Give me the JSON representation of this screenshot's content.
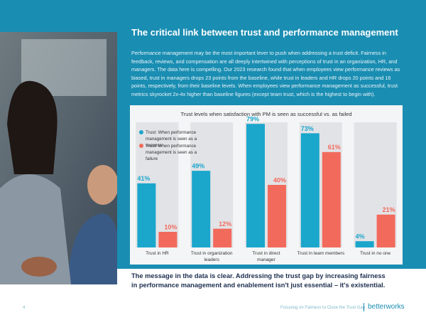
{
  "header": {
    "title": "The critical link between trust and performance management"
  },
  "body": {
    "paragraph": "Performance management may be the most important lever to push when addressing a trust deficit. Fairness in feedback, reviews, and compensation are all deeply intertwined with perceptions of trust in an organization, HR, and managers. The data here is compelling. Our 2023 research found that when employees view performance reviews as biased, trust in managers drops 23 points from the baseline, while trust in leaders and HR drops 20 points and 16 points, respectively, from their baseline levels. When employees view performance management as successful, trust metrics skyrocket 2x-4x higher than baseline figures (except team trust, which is the highest to begin with).",
    "conclusion": "The message in the data is clear. Addressing the trust gap by increasing fairness in performance management and enablement isn't just essential – it's existential."
  },
  "chart_data": {
    "type": "bar",
    "title": "Trust levels when satisfaction with PM is seen as successful vs. as failed",
    "categories": [
      "Trust in HR",
      "Trust in organization leaders",
      "Trust in direct manager",
      "Trust in team members",
      "Trust in no one"
    ],
    "series": [
      {
        "name": "Trust: When performance management is seen as a success",
        "color": "#1ba6cc",
        "values": [
          41,
          49,
          79,
          73,
          4
        ],
        "value_labels": [
          "41%",
          "49%",
          "79%",
          "73%",
          "4%"
        ]
      },
      {
        "name": "Trust: When performance management is seen as a failure",
        "color": "#f26a5c",
        "values": [
          10,
          12,
          40,
          61,
          21
        ],
        "value_labels": [
          "10%",
          "12%",
          "40%",
          "61%",
          "21%"
        ]
      }
    ],
    "ylim": [
      0,
      80
    ]
  },
  "footer": {
    "page": "4",
    "doc_title": "Focusing on Fairness to Close the Trust Gap",
    "brand": "betterworks"
  }
}
